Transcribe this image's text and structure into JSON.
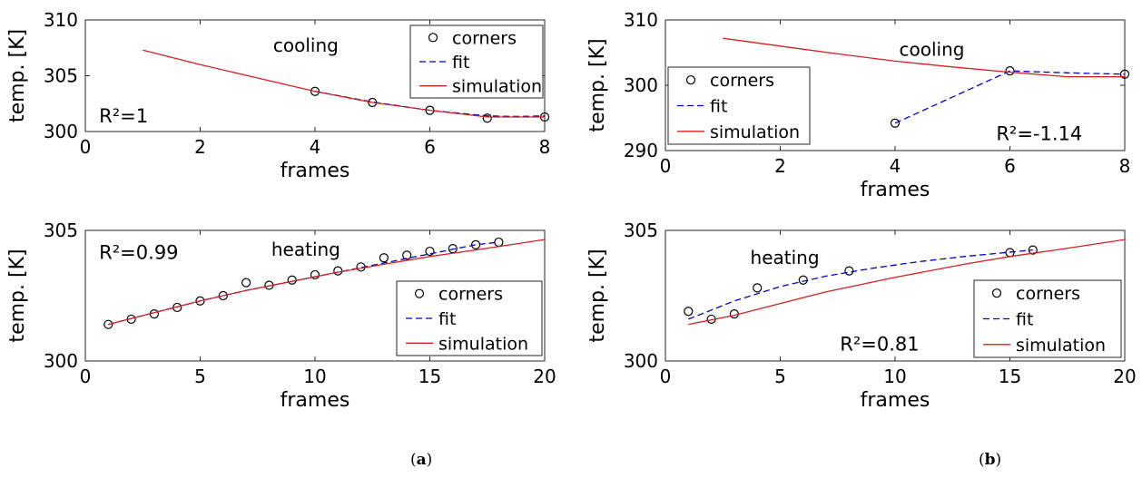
{
  "captions": [
    "(a)",
    "(b)"
  ],
  "caption_letters": [
    "a",
    "b"
  ],
  "chart_data": [
    {
      "type": "scatter",
      "panel": "a-top",
      "title": "cooling",
      "annotation": "R²=1",
      "xlabel": "frames",
      "ylabel": "temp. [K]",
      "xlim": [
        0,
        8
      ],
      "ylim": [
        300,
        310
      ],
      "xticks": [
        0,
        2,
        4,
        6,
        8
      ],
      "yticks": [
        300,
        305,
        310
      ],
      "legend_position": "top-right",
      "series": [
        {
          "name": "corners",
          "style": "marker",
          "color": "#000000",
          "x": [
            4,
            5,
            6,
            7,
            8
          ],
          "y": [
            303.6,
            302.6,
            301.9,
            301.2,
            301.3
          ]
        },
        {
          "name": "fit",
          "style": "dashed",
          "color": "#0000cc",
          "x": [
            4,
            5,
            6,
            7,
            7.5,
            8
          ],
          "y": [
            303.6,
            302.65,
            301.9,
            301.4,
            301.35,
            301.4
          ]
        },
        {
          "name": "simulation",
          "style": "solid",
          "color": "#d62020",
          "x": [
            1,
            2,
            3,
            4,
            5,
            6,
            7,
            8
          ],
          "y": [
            307.3,
            306.0,
            304.8,
            303.6,
            302.6,
            301.9,
            301.3,
            301.3
          ]
        }
      ]
    },
    {
      "type": "scatter",
      "panel": "b-top",
      "title": "cooling",
      "annotation": "R²=-1.14",
      "xlabel": "frames",
      "ylabel": "temp. [K]",
      "xlim": [
        0,
        8
      ],
      "ylim": [
        290,
        310
      ],
      "xticks": [
        0,
        2,
        4,
        6,
        8
      ],
      "yticks": [
        290,
        300,
        310
      ],
      "legend_position": "bottom-left",
      "series": [
        {
          "name": "corners",
          "style": "marker",
          "color": "#000000",
          "x": [
            4,
            6,
            8
          ],
          "y": [
            294.2,
            302.2,
            301.7
          ]
        },
        {
          "name": "fit",
          "style": "dashed",
          "color": "#0000cc",
          "x": [
            4,
            6,
            7,
            8
          ],
          "y": [
            294.2,
            302.2,
            301.9,
            301.7
          ]
        },
        {
          "name": "simulation",
          "style": "solid",
          "color": "#d62020",
          "x": [
            1,
            2,
            3,
            4,
            5,
            6,
            7,
            8
          ],
          "y": [
            307.2,
            306.0,
            304.8,
            303.7,
            302.8,
            302.0,
            301.3,
            301.3
          ]
        }
      ]
    },
    {
      "type": "scatter",
      "panel": "a-bottom",
      "title": "heating",
      "annotation": "R²=0.99",
      "xlabel": "frames",
      "ylabel": "temp. [K]",
      "xlim": [
        0,
        20
      ],
      "ylim": [
        300,
        305
      ],
      "xticks": [
        0,
        5,
        10,
        15,
        20
      ],
      "yticks": [
        300,
        305
      ],
      "legend_position": "bottom-right",
      "series": [
        {
          "name": "corners",
          "style": "marker",
          "color": "#000000",
          "x": [
            1,
            2,
            3,
            4,
            5,
            6,
            7,
            8,
            9,
            10,
            11,
            12,
            13,
            14,
            15,
            16,
            17,
            18
          ],
          "y": [
            301.4,
            301.6,
            301.8,
            302.05,
            302.3,
            302.5,
            303.0,
            302.9,
            303.1,
            303.3,
            303.45,
            303.6,
            303.95,
            304.05,
            304.2,
            304.3,
            304.45,
            304.55
          ]
        },
        {
          "name": "fit",
          "style": "dashed",
          "color": "#0000cc",
          "x": [
            1,
            3,
            5,
            7,
            9,
            11,
            13,
            15,
            17,
            18
          ],
          "y": [
            301.4,
            301.85,
            302.3,
            302.7,
            303.05,
            303.4,
            303.75,
            304.1,
            304.45,
            304.55
          ]
        },
        {
          "name": "simulation",
          "style": "solid",
          "color": "#d62020",
          "x": [
            1,
            3,
            5,
            7,
            9,
            11,
            13,
            15,
            17,
            20
          ],
          "y": [
            301.4,
            301.85,
            302.3,
            302.7,
            303.05,
            303.4,
            303.7,
            304.0,
            304.25,
            304.65
          ]
        }
      ]
    },
    {
      "type": "scatter",
      "panel": "b-bottom",
      "title": "heating",
      "annotation": "R²=0.81",
      "xlabel": "frames",
      "ylabel": "temp. [K]",
      "xlim": [
        0,
        20
      ],
      "ylim": [
        300,
        305
      ],
      "xticks": [
        0,
        5,
        10,
        15,
        20
      ],
      "yticks": [
        300,
        305
      ],
      "legend_position": "bottom-right",
      "series": [
        {
          "name": "corners",
          "style": "marker",
          "color": "#000000",
          "x": [
            1,
            2,
            3,
            4,
            6,
            8,
            15,
            16
          ],
          "y": [
            301.9,
            301.6,
            301.8,
            302.8,
            303.1,
            303.45,
            304.15,
            304.25
          ]
        },
        {
          "name": "fit",
          "style": "dashed",
          "color": "#0000cc",
          "x": [
            1,
            3,
            5,
            7,
            9,
            11,
            13,
            16
          ],
          "y": [
            301.6,
            302.3,
            302.85,
            303.25,
            303.55,
            303.8,
            304.0,
            304.25
          ]
        },
        {
          "name": "simulation",
          "style": "solid",
          "color": "#d62020",
          "x": [
            1,
            3,
            5,
            7,
            10,
            13,
            15,
            17,
            20
          ],
          "y": [
            301.4,
            301.75,
            302.2,
            302.65,
            303.2,
            303.7,
            304.0,
            304.25,
            304.65
          ]
        }
      ]
    }
  ]
}
